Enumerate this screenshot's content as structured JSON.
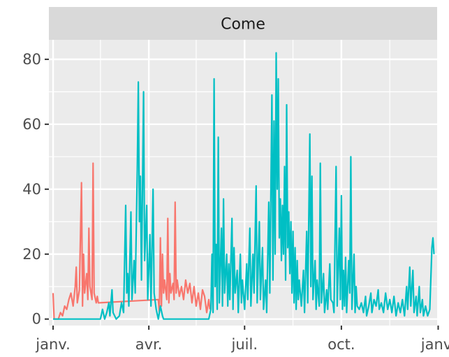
{
  "chart_data": {
    "type": "line",
    "facet_label": "Come",
    "x_axis": {
      "type": "date",
      "range": [
        "2019-12-28",
        "2020-12-31"
      ],
      "ticks": [
        {
          "date": "2020-01-01",
          "label": "janv."
        },
        {
          "date": "2020-04-01",
          "label": "avr."
        },
        {
          "date": "2020-07-01",
          "label": "juil."
        },
        {
          "date": "2020-10-01",
          "label": "oct."
        },
        {
          "date": "2021-01-01",
          "label": "janv."
        }
      ]
    },
    "y_axis": {
      "range": [
        -2,
        86
      ],
      "ticks": [
        0,
        20,
        40,
        60,
        80
      ]
    },
    "grid": true,
    "legend": "none",
    "background": "#ebebeb",
    "series": [
      {
        "color": "#f8766d",
        "points": [
          [
            "2020-01-01",
            8
          ],
          [
            "2020-01-02",
            0
          ],
          [
            "2020-01-06",
            0
          ],
          [
            "2020-01-08",
            2
          ],
          [
            "2020-01-10",
            1
          ],
          [
            "2020-01-12",
            4
          ],
          [
            "2020-01-14",
            3
          ],
          [
            "2020-01-16",
            6
          ],
          [
            "2020-01-18",
            8
          ],
          [
            "2020-01-20",
            4
          ],
          [
            "2020-01-22",
            10
          ],
          [
            "2020-01-23",
            16
          ],
          [
            "2020-01-24",
            5
          ],
          [
            "2020-01-26",
            9
          ],
          [
            "2020-01-28",
            42
          ],
          [
            "2020-01-29",
            4
          ],
          [
            "2020-01-30",
            20
          ],
          [
            "2020-01-31",
            8
          ],
          [
            "2020-02-02",
            14
          ],
          [
            "2020-02-03",
            6
          ],
          [
            "2020-02-04",
            28
          ],
          [
            "2020-02-05",
            10
          ],
          [
            "2020-02-07",
            6
          ],
          [
            "2020-02-08",
            48
          ],
          [
            "2020-02-09",
            8
          ],
          [
            "2020-02-11",
            5
          ],
          [
            "2020-02-12",
            7
          ],
          [
            "2020-02-13",
            5
          ],
          [
            "2020-04-10",
            6
          ],
          [
            "2020-04-11",
            2
          ],
          [
            "2020-04-12",
            25
          ],
          [
            "2020-04-13",
            4
          ],
          [
            "2020-04-14",
            20
          ],
          [
            "2020-04-15",
            8
          ],
          [
            "2020-04-16",
            12
          ],
          [
            "2020-04-18",
            6
          ],
          [
            "2020-04-19",
            31
          ],
          [
            "2020-04-20",
            5
          ],
          [
            "2020-04-21",
            14
          ],
          [
            "2020-04-22",
            8
          ],
          [
            "2020-04-24",
            11
          ],
          [
            "2020-04-25",
            6
          ],
          [
            "2020-04-26",
            36
          ],
          [
            "2020-04-27",
            8
          ],
          [
            "2020-04-28",
            12
          ],
          [
            "2020-04-30",
            7
          ],
          [
            "2020-05-02",
            10
          ],
          [
            "2020-05-04",
            6
          ],
          [
            "2020-05-06",
            12
          ],
          [
            "2020-05-08",
            8
          ],
          [
            "2020-05-10",
            11
          ],
          [
            "2020-05-12",
            5
          ],
          [
            "2020-05-14",
            10
          ],
          [
            "2020-05-16",
            4
          ],
          [
            "2020-05-18",
            8
          ],
          [
            "2020-05-20",
            3
          ],
          [
            "2020-05-22",
            9
          ],
          [
            "2020-05-24",
            7
          ],
          [
            "2020-05-26",
            2
          ],
          [
            "2020-05-28",
            6
          ],
          [
            "2020-05-29",
            3
          ]
        ]
      },
      {
        "color": "#00bfc4",
        "points": [
          [
            "2020-01-01",
            0
          ],
          [
            "2020-02-15",
            0
          ],
          [
            "2020-02-17",
            3
          ],
          [
            "2020-02-19",
            0
          ],
          [
            "2020-02-21",
            2
          ],
          [
            "2020-02-23",
            5
          ],
          [
            "2020-02-24",
            1
          ],
          [
            "2020-02-26",
            9
          ],
          [
            "2020-02-27",
            2
          ],
          [
            "2020-03-01",
            0
          ],
          [
            "2020-03-04",
            1
          ],
          [
            "2020-03-06",
            5
          ],
          [
            "2020-03-08",
            2
          ],
          [
            "2020-03-10",
            35
          ],
          [
            "2020-03-11",
            8
          ],
          [
            "2020-03-12",
            14
          ],
          [
            "2020-03-13",
            4
          ],
          [
            "2020-03-15",
            33
          ],
          [
            "2020-03-16",
            6
          ],
          [
            "2020-03-18",
            18
          ],
          [
            "2020-03-19",
            8
          ],
          [
            "2020-03-21",
            46
          ],
          [
            "2020-03-22",
            73
          ],
          [
            "2020-03-23",
            30
          ],
          [
            "2020-03-24",
            44
          ],
          [
            "2020-03-25",
            12
          ],
          [
            "2020-03-27",
            70
          ],
          [
            "2020-03-28",
            18
          ],
          [
            "2020-03-30",
            35
          ],
          [
            "2020-03-31",
            6
          ],
          [
            "2020-04-02",
            26
          ],
          [
            "2020-04-03",
            4
          ],
          [
            "2020-04-05",
            40
          ],
          [
            "2020-04-06",
            8
          ],
          [
            "2020-04-08",
            3
          ],
          [
            "2020-04-10",
            0
          ],
          [
            "2020-04-12",
            4
          ],
          [
            "2020-04-14",
            1
          ],
          [
            "2020-04-15",
            0
          ],
          [
            "2020-05-28",
            0
          ],
          [
            "2020-05-30",
            3
          ],
          [
            "2020-05-31",
            20
          ],
          [
            "2020-06-01",
            2
          ],
          [
            "2020-06-02",
            74
          ],
          [
            "2020-06-03",
            10
          ],
          [
            "2020-06-04",
            23
          ],
          [
            "2020-06-05",
            3
          ],
          [
            "2020-06-06",
            56
          ],
          [
            "2020-06-07",
            5
          ],
          [
            "2020-06-09",
            28
          ],
          [
            "2020-06-10",
            4
          ],
          [
            "2020-06-11",
            37
          ],
          [
            "2020-06-12",
            8
          ],
          [
            "2020-06-14",
            20
          ],
          [
            "2020-06-15",
            4
          ],
          [
            "2020-06-16",
            17
          ],
          [
            "2020-06-17",
            6
          ],
          [
            "2020-06-19",
            31
          ],
          [
            "2020-06-20",
            3
          ],
          [
            "2020-06-21",
            22
          ],
          [
            "2020-06-22",
            8
          ],
          [
            "2020-06-24",
            15
          ],
          [
            "2020-06-25",
            2
          ],
          [
            "2020-06-27",
            20
          ],
          [
            "2020-06-28",
            5
          ],
          [
            "2020-06-29",
            12
          ],
          [
            "2020-07-01",
            3
          ],
          [
            "2020-07-03",
            17
          ],
          [
            "2020-07-04",
            6
          ],
          [
            "2020-07-06",
            28
          ],
          [
            "2020-07-07",
            4
          ],
          [
            "2020-07-09",
            20
          ],
          [
            "2020-07-10",
            8
          ],
          [
            "2020-07-12",
            41
          ],
          [
            "2020-07-13",
            5
          ],
          [
            "2020-07-15",
            30
          ],
          [
            "2020-07-16",
            6
          ],
          [
            "2020-07-18",
            22
          ],
          [
            "2020-07-19",
            3
          ],
          [
            "2020-07-21",
            12
          ],
          [
            "2020-07-22",
            2
          ],
          [
            "2020-07-24",
            36
          ],
          [
            "2020-07-25",
            8
          ],
          [
            "2020-07-27",
            69
          ],
          [
            "2020-07-28",
            12
          ],
          [
            "2020-07-29",
            61
          ],
          [
            "2020-07-30",
            20
          ],
          [
            "2020-07-31",
            82
          ],
          [
            "2020-08-01",
            40
          ],
          [
            "2020-08-02",
            74
          ],
          [
            "2020-08-03",
            25
          ],
          [
            "2020-08-04",
            37
          ],
          [
            "2020-08-05",
            18
          ],
          [
            "2020-08-06",
            35
          ],
          [
            "2020-08-07",
            20
          ],
          [
            "2020-08-08",
            47
          ],
          [
            "2020-08-09",
            12
          ],
          [
            "2020-08-10",
            66
          ],
          [
            "2020-08-11",
            22
          ],
          [
            "2020-08-12",
            33
          ],
          [
            "2020-08-13",
            14
          ],
          [
            "2020-08-14",
            30
          ],
          [
            "2020-08-15",
            8
          ],
          [
            "2020-08-16",
            27
          ],
          [
            "2020-08-17",
            5
          ],
          [
            "2020-08-18",
            22
          ],
          [
            "2020-08-19",
            3
          ],
          [
            "2020-08-20",
            18
          ],
          [
            "2020-08-21",
            6
          ],
          [
            "2020-08-22",
            12
          ],
          [
            "2020-08-24",
            4
          ],
          [
            "2020-08-26",
            15
          ],
          [
            "2020-08-27",
            2
          ],
          [
            "2020-08-29",
            27
          ],
          [
            "2020-08-30",
            5
          ],
          [
            "2020-09-01",
            57
          ],
          [
            "2020-09-02",
            10
          ],
          [
            "2020-09-03",
            44
          ],
          [
            "2020-09-04",
            6
          ],
          [
            "2020-09-06",
            18
          ],
          [
            "2020-09-07",
            3
          ],
          [
            "2020-09-08",
            12
          ],
          [
            "2020-09-10",
            4
          ],
          [
            "2020-09-11",
            48
          ],
          [
            "2020-09-12",
            5
          ],
          [
            "2020-09-14",
            14
          ],
          [
            "2020-09-15",
            2
          ],
          [
            "2020-09-17",
            9
          ],
          [
            "2020-09-18",
            3
          ],
          [
            "2020-09-20",
            17
          ],
          [
            "2020-09-21",
            6
          ],
          [
            "2020-09-23",
            5
          ],
          [
            "2020-09-24",
            2
          ],
          [
            "2020-09-26",
            47
          ],
          [
            "2020-09-27",
            4
          ],
          [
            "2020-09-29",
            28
          ],
          [
            "2020-09-30",
            6
          ],
          [
            "2020-10-01",
            38
          ],
          [
            "2020-10-02",
            3
          ],
          [
            "2020-10-03",
            15
          ],
          [
            "2020-10-04",
            4
          ],
          [
            "2020-10-05",
            19
          ],
          [
            "2020-10-06",
            2
          ],
          [
            "2020-10-08",
            18
          ],
          [
            "2020-10-09",
            8
          ],
          [
            "2020-10-10",
            50
          ],
          [
            "2020-10-11",
            3
          ],
          [
            "2020-10-13",
            20
          ],
          [
            "2020-10-14",
            2
          ],
          [
            "2020-10-15",
            10
          ],
          [
            "2020-10-16",
            4
          ],
          [
            "2020-10-18",
            3
          ],
          [
            "2020-10-20",
            5
          ],
          [
            "2020-10-22",
            2
          ],
          [
            "2020-10-24",
            7
          ],
          [
            "2020-10-25",
            1
          ],
          [
            "2020-10-27",
            4
          ],
          [
            "2020-10-29",
            8
          ],
          [
            "2020-10-30",
            2
          ],
          [
            "2020-11-01",
            6
          ],
          [
            "2020-11-03",
            4
          ],
          [
            "2020-11-05",
            9
          ],
          [
            "2020-11-06",
            3
          ],
          [
            "2020-11-08",
            5
          ],
          [
            "2020-11-10",
            2
          ],
          [
            "2020-11-12",
            8
          ],
          [
            "2020-11-14",
            3
          ],
          [
            "2020-11-16",
            6
          ],
          [
            "2020-11-18",
            2
          ],
          [
            "2020-11-20",
            7
          ],
          [
            "2020-11-22",
            1
          ],
          [
            "2020-11-24",
            5
          ],
          [
            "2020-11-26",
            2
          ],
          [
            "2020-11-28",
            6
          ],
          [
            "2020-11-30",
            1
          ],
          [
            "2020-12-02",
            10
          ],
          [
            "2020-12-03",
            3
          ],
          [
            "2020-12-05",
            16
          ],
          [
            "2020-12-06",
            4
          ],
          [
            "2020-12-08",
            15
          ],
          [
            "2020-12-09",
            2
          ],
          [
            "2020-12-11",
            7
          ],
          [
            "2020-12-12",
            1
          ],
          [
            "2020-12-14",
            10
          ],
          [
            "2020-12-15",
            2
          ],
          [
            "2020-12-17",
            6
          ],
          [
            "2020-12-18",
            1
          ],
          [
            "2020-12-20",
            4
          ],
          [
            "2020-12-22",
            1
          ],
          [
            "2020-12-24",
            3
          ],
          [
            "2020-12-26",
            22
          ],
          [
            "2020-12-27",
            25
          ],
          [
            "2020-12-28",
            20
          ]
        ]
      }
    ]
  }
}
